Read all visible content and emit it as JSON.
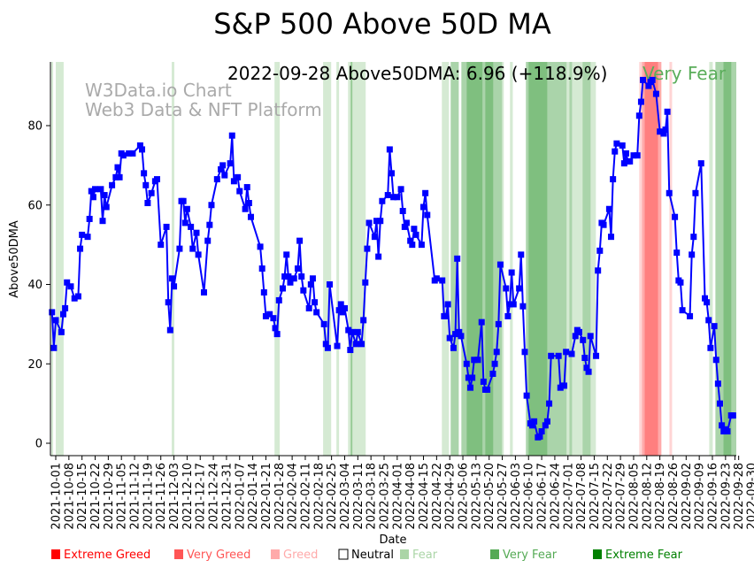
{
  "chart_data": {
    "type": "line",
    "title": "S&P 500 Above 50D MA",
    "xlabel": "Date",
    "ylabel": "Above50DMA",
    "x_start_date": "2021-10-01",
    "x_unit": "days since 2021-10-01",
    "xlim": [
      -3,
      364
    ],
    "ylim": [
      -3,
      96
    ],
    "yticks": [
      0,
      20,
      40,
      60,
      80
    ],
    "grid": false,
    "annotation": "2022-09-28 Above50DMA: 6.96 (+118.9%)",
    "annotation_status": "Very Fear",
    "annotation_status_color": "#5aad5a",
    "watermark": [
      "W3Data.io Chart",
      "Web3 Data & NFT Platform"
    ],
    "line_color": "#0000ff",
    "xtick_labels": [
      "2021-10-01",
      "2021-10-08",
      "2021-10-15",
      "2021-10-22",
      "2021-10-29",
      "2021-11-05",
      "2021-11-12",
      "2021-11-19",
      "2021-11-26",
      "2021-12-03",
      "2021-12-10",
      "2021-12-17",
      "2021-12-24",
      "2021-12-31",
      "2022-01-07",
      "2022-01-14",
      "2022-01-21",
      "2022-01-28",
      "2022-02-04",
      "2022-02-11",
      "2022-02-18",
      "2022-02-25",
      "2022-03-04",
      "2022-03-11",
      "2022-03-18",
      "2022-03-25",
      "2022-04-01",
      "2022-04-08",
      "2022-04-15",
      "2022-04-22",
      "2022-04-29",
      "2022-05-06",
      "2022-05-13",
      "2022-05-20",
      "2022-05-27",
      "2022-06-03",
      "2022-06-10",
      "2022-06-17",
      "2022-06-24",
      "2022-07-01",
      "2022-07-08",
      "2022-07-15",
      "2022-07-22",
      "2022-07-29",
      "2022-08-05",
      "2022-08-12",
      "2022-08-19",
      "2022-08-26",
      "2022-09-02",
      "2022-09-09",
      "2022-09-16",
      "2022-09-23",
      "2022-09-28",
      "2022-09-30"
    ],
    "xtick_days": [
      0,
      7,
      14,
      21,
      28,
      35,
      42,
      49,
      56,
      63,
      70,
      77,
      84,
      91,
      98,
      105,
      112,
      119,
      126,
      133,
      140,
      147,
      154,
      161,
      168,
      175,
      182,
      189,
      196,
      203,
      210,
      217,
      224,
      231,
      238,
      245,
      252,
      259,
      266,
      273,
      280,
      287,
      294,
      301,
      308,
      315,
      322,
      329,
      336,
      343,
      350,
      357,
      362,
      364
    ],
    "points": [
      [
        -2,
        33
      ],
      [
        -1,
        24
      ],
      [
        0,
        31
      ],
      [
        3,
        28
      ],
      [
        4,
        32.5
      ],
      [
        5,
        34
      ],
      [
        6,
        40.5
      ],
      [
        8,
        39.5
      ],
      [
        10,
        36.5
      ],
      [
        12,
        37
      ],
      [
        13,
        49
      ],
      [
        14,
        52.5
      ],
      [
        17,
        52
      ],
      [
        18,
        56.5
      ],
      [
        19,
        63.5
      ],
      [
        20,
        62
      ],
      [
        21,
        64
      ],
      [
        24,
        64
      ],
      [
        25,
        56
      ],
      [
        26,
        62.5
      ],
      [
        27,
        59.5
      ],
      [
        30,
        65
      ],
      [
        32,
        67
      ],
      [
        33,
        69.5
      ],
      [
        34,
        67
      ],
      [
        35,
        73
      ],
      [
        36,
        72.5
      ],
      [
        39,
        73
      ],
      [
        41,
        73
      ],
      [
        45,
        75
      ],
      [
        46,
        74
      ],
      [
        47,
        68
      ],
      [
        48,
        65
      ],
      [
        49,
        60.5
      ],
      [
        51,
        63
      ],
      [
        53,
        66
      ],
      [
        54,
        66.5
      ],
      [
        56,
        50
      ],
      [
        59,
        54.5
      ],
      [
        60,
        35.5
      ],
      [
        61,
        28.5
      ],
      [
        62,
        41.5
      ],
      [
        63,
        39.5
      ],
      [
        66,
        49
      ],
      [
        67,
        61
      ],
      [
        68,
        61
      ],
      [
        69,
        55.5
      ],
      [
        70,
        59
      ],
      [
        72,
        54.5
      ],
      [
        73,
        49
      ],
      [
        75,
        53
      ],
      [
        76,
        47.5
      ],
      [
        79,
        38
      ],
      [
        81,
        51
      ],
      [
        82,
        55
      ],
      [
        83,
        60
      ],
      [
        86,
        66.5
      ],
      [
        88,
        69
      ],
      [
        89,
        70
      ],
      [
        90,
        67.5
      ],
      [
        93,
        70.5
      ],
      [
        94,
        77.5
      ],
      [
        95,
        66
      ],
      [
        97,
        67
      ],
      [
        98,
        63.5
      ],
      [
        101,
        59
      ],
      [
        102,
        64.5
      ],
      [
        103,
        60.5
      ],
      [
        104,
        57
      ],
      [
        109,
        49.5
      ],
      [
        110,
        44
      ],
      [
        111,
        38
      ],
      [
        112,
        32
      ],
      [
        114,
        32.5
      ],
      [
        116,
        31.5
      ],
      [
        117,
        29
      ],
      [
        118,
        27.5
      ],
      [
        119,
        36
      ],
      [
        121,
        39
      ],
      [
        122,
        42
      ],
      [
        123,
        47.5
      ],
      [
        124,
        42
      ],
      [
        125,
        40.5
      ],
      [
        127,
        41.5
      ],
      [
        129,
        44
      ],
      [
        130,
        51
      ],
      [
        131,
        42
      ],
      [
        132,
        38.5
      ],
      [
        135,
        34
      ],
      [
        136,
        40
      ],
      [
        137,
        41.5
      ],
      [
        138,
        35.5
      ],
      [
        139,
        33
      ],
      [
        143,
        30
      ],
      [
        144,
        25
      ],
      [
        145,
        24
      ],
      [
        146,
        40
      ],
      [
        150,
        24.5
      ],
      [
        151,
        33.5
      ],
      [
        152,
        35
      ],
      [
        153,
        33
      ],
      [
        154,
        34
      ],
      [
        156,
        28.5
      ],
      [
        157,
        23.5
      ],
      [
        158,
        28
      ],
      [
        160,
        25
      ],
      [
        161,
        28
      ],
      [
        163,
        25
      ],
      [
        164,
        31
      ],
      [
        165,
        40.5
      ],
      [
        166,
        49
      ],
      [
        167,
        55.5
      ],
      [
        170,
        52
      ],
      [
        171,
        56
      ],
      [
        172,
        47
      ],
      [
        173,
        56
      ],
      [
        174,
        61
      ],
      [
        177,
        62.5
      ],
      [
        178,
        74
      ],
      [
        179,
        68
      ],
      [
        180,
        62
      ],
      [
        182,
        62
      ],
      [
        184,
        64
      ],
      [
        185,
        58.5
      ],
      [
        186,
        54.5
      ],
      [
        187,
        55.5
      ],
      [
        189,
        51
      ],
      [
        190,
        50
      ],
      [
        191,
        54
      ],
      [
        192,
        52.5
      ],
      [
        195,
        50
      ],
      [
        196,
        59.5
      ],
      [
        197,
        63
      ],
      [
        198,
        57.5
      ],
      [
        202,
        41
      ],
      [
        203,
        41.5
      ],
      [
        206,
        41
      ],
      [
        207,
        32
      ],
      [
        208,
        32
      ],
      [
        209,
        35
      ],
      [
        210,
        26.5
      ],
      [
        212,
        24
      ],
      [
        213,
        27.5
      ],
      [
        214,
        46.5
      ],
      [
        215,
        28
      ],
      [
        216,
        27
      ],
      [
        219,
        20
      ],
      [
        220,
        16.5
      ],
      [
        221,
        14
      ],
      [
        222,
        16.5
      ],
      [
        223,
        21
      ],
      [
        225,
        21
      ],
      [
        227,
        30.5
      ],
      [
        228,
        15.5
      ],
      [
        229,
        13.5
      ],
      [
        230,
        13.5
      ],
      [
        233,
        17.5
      ],
      [
        234,
        20
      ],
      [
        235,
        23
      ],
      [
        236,
        30
      ],
      [
        237,
        45
      ],
      [
        240,
        39
      ],
      [
        241,
        32
      ],
      [
        242,
        35
      ],
      [
        243,
        43
      ],
      [
        244,
        35
      ],
      [
        247,
        39
      ],
      [
        248,
        47.5
      ],
      [
        249,
        34.5
      ],
      [
        250,
        23
      ],
      [
        251,
        12
      ],
      [
        253,
        5
      ],
      [
        254,
        4.5
      ],
      [
        255,
        5.5
      ],
      [
        257,
        1.5
      ],
      [
        258,
        1.7
      ],
      [
        259,
        3
      ],
      [
        261,
        4.5
      ],
      [
        262,
        5.5
      ],
      [
        263,
        10
      ],
      [
        264,
        22
      ],
      [
        268,
        22
      ],
      [
        269,
        14
      ],
      [
        270,
        14.5
      ],
      [
        271,
        14.5
      ],
      [
        272,
        23
      ],
      [
        275,
        22.5
      ],
      [
        277,
        27
      ],
      [
        278,
        28.5
      ],
      [
        279,
        28
      ],
      [
        281,
        26
      ],
      [
        282,
        21.5
      ],
      [
        283,
        19
      ],
      [
        284,
        18
      ],
      [
        285,
        27
      ],
      [
        288,
        22
      ],
      [
        289,
        43.5
      ],
      [
        290,
        48.5
      ],
      [
        291,
        55.5
      ],
      [
        292,
        55
      ],
      [
        295,
        59
      ],
      [
        296,
        52
      ],
      [
        297,
        66.5
      ],
      [
        298,
        73.5
      ],
      [
        299,
        75.5
      ],
      [
        302,
        75
      ],
      [
        303,
        70.5
      ],
      [
        304,
        73
      ],
      [
        305,
        71
      ],
      [
        306,
        71
      ],
      [
        308,
        72.5
      ],
      [
        310,
        72.5
      ],
      [
        311,
        82.5
      ],
      [
        312,
        86
      ],
      [
        313,
        91.5
      ],
      [
        316,
        90
      ],
      [
        317,
        91
      ],
      [
        318,
        91.5
      ],
      [
        320,
        88
      ],
      [
        322,
        78.5
      ],
      [
        324,
        78
      ],
      [
        325,
        79
      ],
      [
        326,
        83.5
      ],
      [
        327,
        63
      ],
      [
        330,
        57
      ],
      [
        331,
        48
      ],
      [
        332,
        41
      ],
      [
        333,
        40.5
      ],
      [
        334,
        33.5
      ],
      [
        338,
        32
      ],
      [
        339,
        47.5
      ],
      [
        340,
        52
      ],
      [
        341,
        63
      ],
      [
        344,
        70.5
      ],
      [
        346,
        36.5
      ],
      [
        347,
        35.5
      ],
      [
        348,
        31
      ],
      [
        349,
        24
      ],
      [
        351,
        29.5
      ],
      [
        352,
        21
      ],
      [
        353,
        15
      ],
      [
        354,
        10
      ],
      [
        355,
        4.5
      ],
      [
        356,
        3
      ],
      [
        357,
        3.5
      ],
      [
        358,
        3
      ],
      [
        360,
        7
      ],
      [
        361,
        7
      ]
    ],
    "sentiment_bands": [
      [
        -2.4,
        -1.4,
        "Fear"
      ],
      [
        0,
        4.2,
        "Fear"
      ],
      [
        61.8,
        63.2,
        "Fear"
      ],
      [
        116.6,
        119.4,
        "Fear"
      ],
      [
        142.5,
        146.8,
        "Fear"
      ],
      [
        149.6,
        151,
        "Fear"
      ],
      [
        155.8,
        165.2,
        "Fear"
      ],
      [
        157.2,
        158.1,
        "Very Fear"
      ],
      [
        205.8,
        209.6,
        "Fear"
      ],
      [
        210.5,
        214.8,
        "Very Fear"
      ],
      [
        216.2,
        219,
        "Very Fear"
      ],
      [
        219,
        227.5,
        "Extreme Fear"
      ],
      [
        227.5,
        228.9,
        "Very Fear"
      ],
      [
        228.9,
        233.2,
        "Extreme Fear"
      ],
      [
        233.2,
        237.9,
        "Very Fear"
      ],
      [
        237.9,
        238.8,
        "Fear"
      ],
      [
        242.1,
        243.6,
        "Fear"
      ],
      [
        250.6,
        252,
        "Very Fear"
      ],
      [
        252,
        262,
        "Extreme Fear"
      ],
      [
        262,
        272.3,
        "Very Fear"
      ],
      [
        272.3,
        273.8,
        "Fear"
      ],
      [
        273.8,
        275.2,
        "Very Fear"
      ],
      [
        275.2,
        280.8,
        "Fear"
      ],
      [
        280.8,
        285.1,
        "Very Fear"
      ],
      [
        285.1,
        287.9,
        "Fear"
      ],
      [
        311,
        312.5,
        "Greed"
      ],
      [
        312.5,
        313.9,
        "Very Greed"
      ],
      [
        313.9,
        321,
        "Extreme Greed"
      ],
      [
        321,
        322.8,
        "Very Greed"
      ],
      [
        327.1,
        328.5,
        "Greed"
      ],
      [
        348.3,
        350.2,
        "Fear"
      ],
      [
        351.6,
        355.9,
        "Very Fear"
      ],
      [
        355.9,
        360.1,
        "Extreme Fear"
      ],
      [
        360.1,
        363,
        "Very Fear"
      ]
    ],
    "legend_position": "bottom",
    "legend": [
      {
        "label": "Extreme Greed",
        "color": "#ff0000"
      },
      {
        "label": "Very Greed",
        "color": "#ff5555"
      },
      {
        "label": "Greed",
        "color": "#ffaaaa"
      },
      {
        "label": "Neutral",
        "color": "#ffffff"
      },
      {
        "label": "Fear",
        "color": "#abd5a7"
      },
      {
        "label": "Very Fear",
        "color": "#55aa55"
      },
      {
        "label": "Extreme Fear",
        "color": "#008000"
      }
    ]
  }
}
